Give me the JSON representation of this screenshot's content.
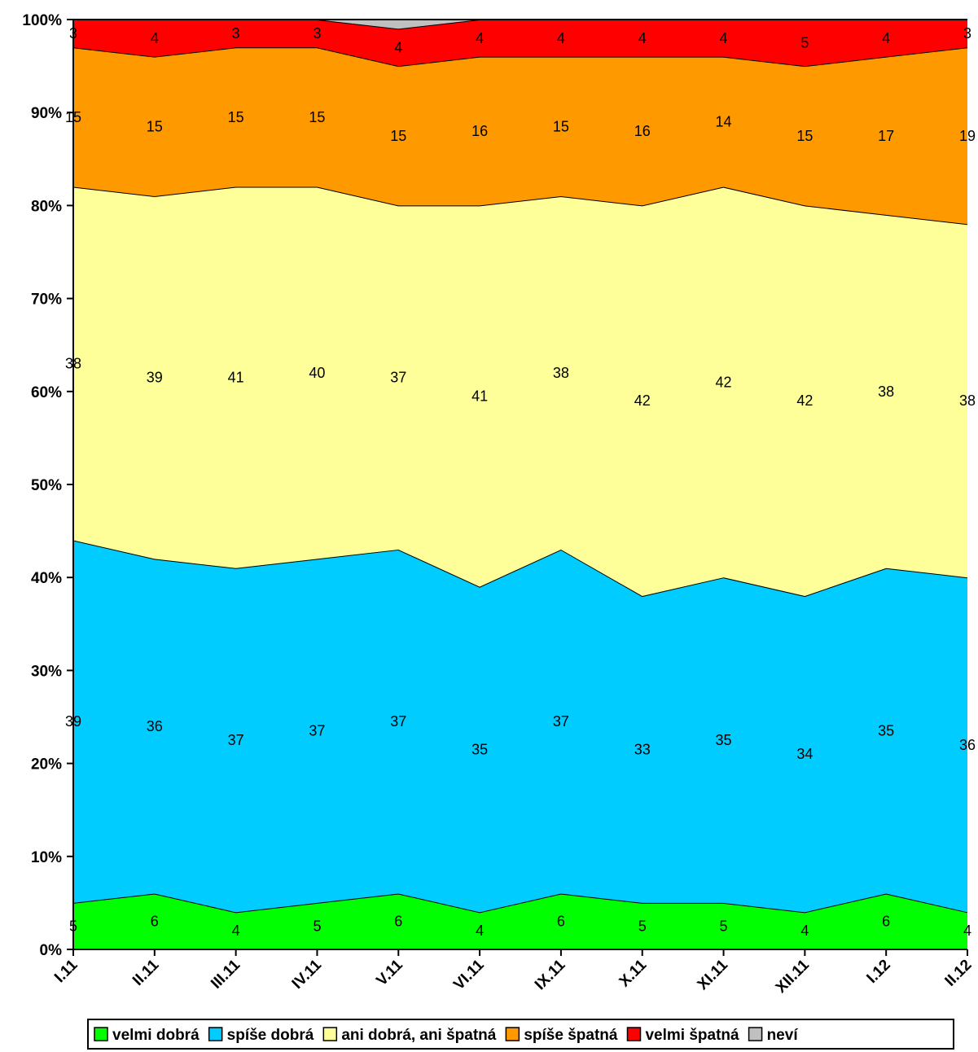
{
  "chart_data": {
    "type": "area",
    "stacked": "percent",
    "categories": [
      "I.11",
      "II.11",
      "III.11",
      "IV.11",
      "V.11",
      "VI.11",
      "IX.11",
      "X.11",
      "XI.11",
      "XII.11",
      "I.12",
      "II.12"
    ],
    "y_ticks": [
      "0%",
      "10%",
      "20%",
      "30%",
      "40%",
      "50%",
      "60%",
      "70%",
      "80%",
      "90%",
      "100%"
    ],
    "ylim": [
      0,
      100
    ],
    "series": [
      {
        "name": "velmi dobrá",
        "color": "#00FF00",
        "values": [
          5,
          6,
          4,
          5,
          6,
          4,
          6,
          5,
          5,
          4,
          6,
          4
        ]
      },
      {
        "name": "spíše dobrá",
        "color": "#00CCFF",
        "values": [
          39,
          36,
          37,
          37,
          37,
          35,
          37,
          33,
          35,
          34,
          35,
          36
        ]
      },
      {
        "name": "ani dobrá, ani špatná",
        "color": "#FFFF99",
        "values": [
          38,
          39,
          41,
          40,
          37,
          41,
          38,
          42,
          42,
          42,
          38,
          38
        ]
      },
      {
        "name": "spíše špatná",
        "color": "#FF9900",
        "values": [
          15,
          15,
          15,
          15,
          15,
          16,
          15,
          16,
          14,
          15,
          17,
          19
        ]
      },
      {
        "name": "velmi špatná",
        "color": "#FF0000",
        "values": [
          3,
          4,
          3,
          3,
          4,
          4,
          4,
          4,
          4,
          5,
          4,
          3
        ]
      },
      {
        "name": "neví",
        "color": "#C0C0C0",
        "values": [
          0,
          0,
          0,
          0,
          1,
          0,
          0,
          0,
          0,
          0,
          0,
          0
        ]
      }
    ],
    "grid": false,
    "legend": "bottom"
  }
}
